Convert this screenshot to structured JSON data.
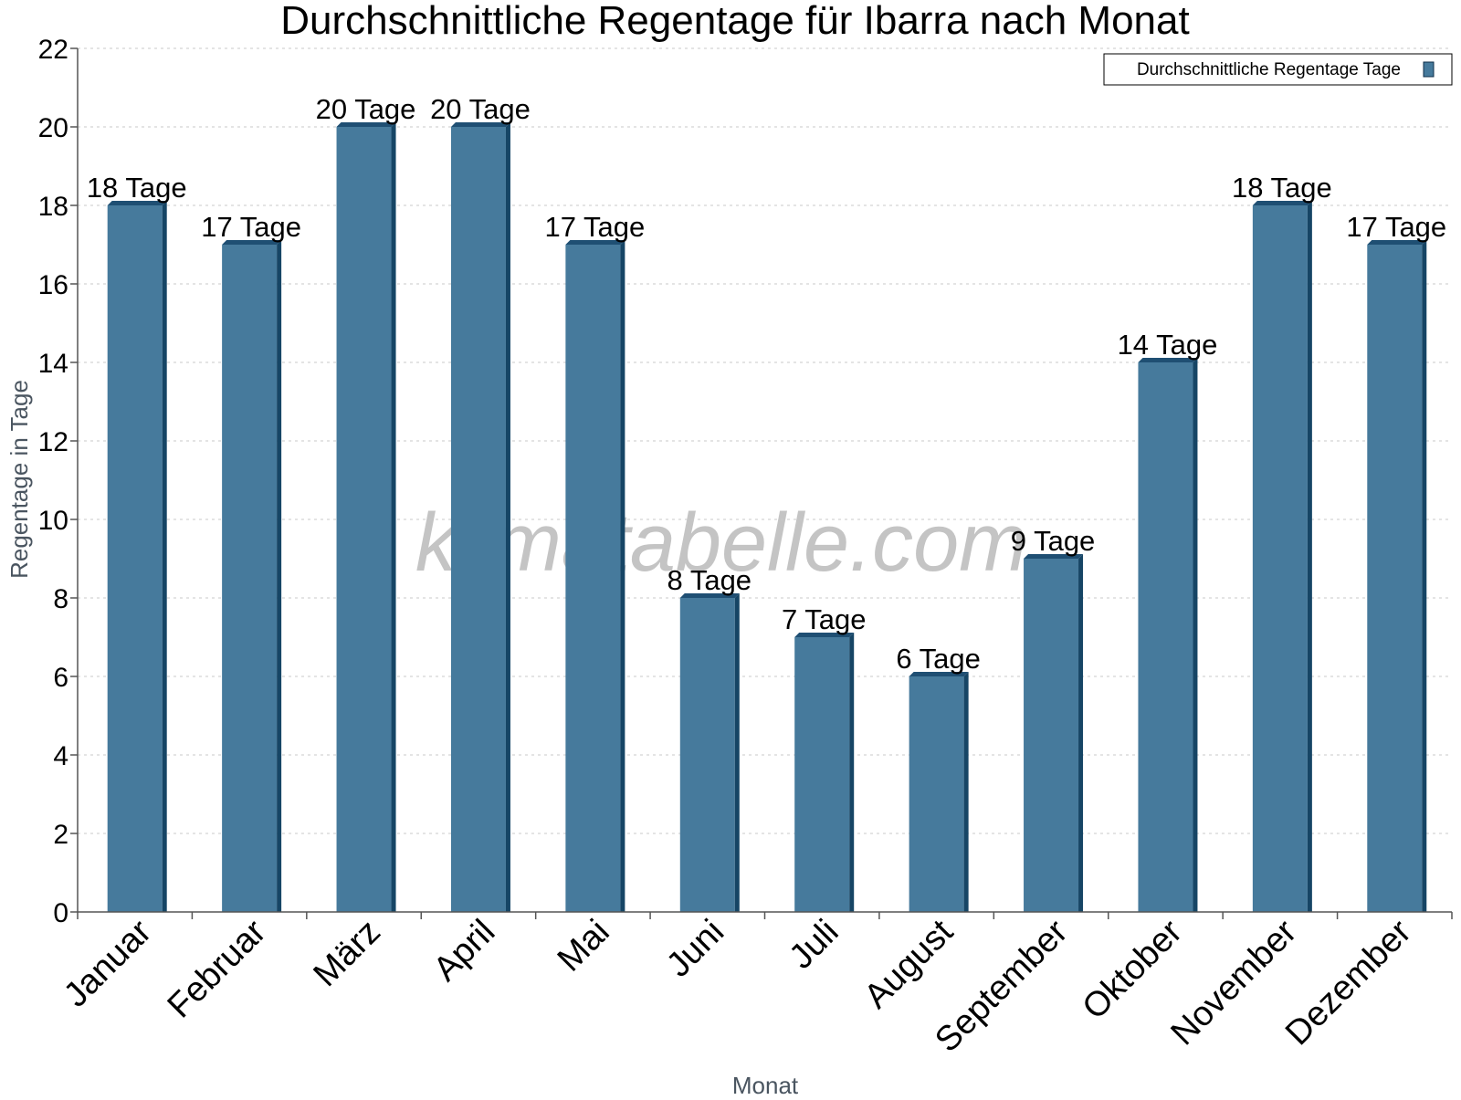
{
  "watermark": "klimatabelle.com",
  "chart_data": {
    "type": "bar",
    "title": "Durchschnittliche Regentage für Ibarra nach Monat",
    "xlabel": "Monat",
    "ylabel": "Regentage in Tage",
    "ylim": [
      0,
      22
    ],
    "yticks": [
      0,
      2,
      4,
      6,
      8,
      10,
      12,
      14,
      16,
      18,
      20,
      22
    ],
    "grid": true,
    "legend_position": "top-right",
    "categories": [
      "Januar",
      "Februar",
      "März",
      "April",
      "Mai",
      "Juni",
      "Juli",
      "August",
      "September",
      "Oktober",
      "November",
      "Dezember"
    ],
    "series": [
      {
        "name": "Durchschnittliche Regentage Tage",
        "color": "#467a9c",
        "values": [
          18,
          17,
          20,
          20,
          17,
          8,
          7,
          6,
          9,
          14,
          18,
          17
        ],
        "data_labels": [
          "18 Tage",
          "17 Tage",
          "20 Tage",
          "20 Tage",
          "17 Tage",
          "8 Tage",
          "7 Tage",
          "6 Tage",
          "9 Tage",
          "14 Tage",
          "18 Tage",
          "17 Tage"
        ]
      }
    ]
  }
}
